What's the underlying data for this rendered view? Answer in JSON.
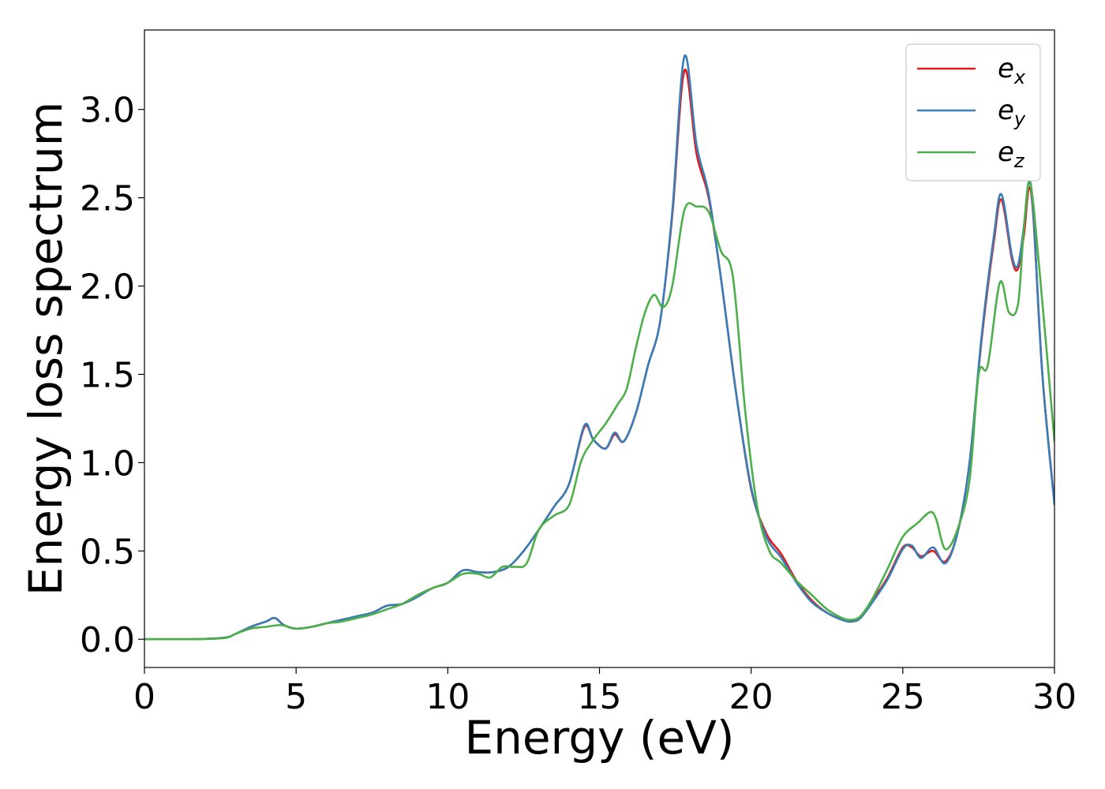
{
  "chart_data": {
    "type": "line",
    "xlabel": "Energy (eV)",
    "ylabel": "Energy loss spectrum",
    "xlim": [
      0,
      30
    ],
    "ylim": [
      -0.16,
      3.45
    ],
    "xticks": [
      "0",
      "5",
      "10",
      "15",
      "20",
      "25",
      "30"
    ],
    "yticks": [
      "0.0",
      "0.5",
      "1.0",
      "1.5",
      "2.0",
      "2.5",
      "3.0"
    ],
    "grid": false,
    "legend_position": "top-right",
    "series": [
      {
        "name": "e_x",
        "legend_base": "e",
        "legend_sub": "x",
        "color": "#e41a1c",
        "x": [
          0,
          1,
          2,
          2.7,
          3,
          3.5,
          4,
          4.3,
          4.6,
          5,
          5.5,
          6,
          6.5,
          7,
          7.5,
          8,
          8.5,
          9,
          9.5,
          10,
          10.5,
          11,
          11.5,
          12,
          12.5,
          13,
          13.5,
          14,
          14.5,
          14.8,
          15.2,
          15.5,
          15.8,
          16.2,
          16.6,
          17,
          17.4,
          17.8,
          18.2,
          18.6,
          19,
          19.5,
          20,
          20.5,
          21,
          21.5,
          22,
          22.5,
          23,
          23.3,
          23.6,
          24,
          24.5,
          25,
          25.3,
          25.6,
          26,
          26.4,
          26.8,
          27.2,
          27.6,
          28,
          28.25,
          28.6,
          28.8,
          29,
          29.15,
          29.3,
          29.6,
          30
        ],
        "values": [
          0,
          0,
          0.002,
          0.01,
          0.03,
          0.07,
          0.1,
          0.12,
          0.08,
          0.06,
          0.07,
          0.09,
          0.11,
          0.13,
          0.15,
          0.19,
          0.2,
          0.25,
          0.29,
          0.32,
          0.39,
          0.38,
          0.38,
          0.41,
          0.5,
          0.62,
          0.75,
          0.88,
          1.2,
          1.13,
          1.08,
          1.16,
          1.12,
          1.28,
          1.55,
          1.8,
          2.4,
          3.22,
          2.75,
          2.5,
          2.05,
          1.4,
          0.85,
          0.6,
          0.48,
          0.33,
          0.22,
          0.15,
          0.11,
          0.1,
          0.12,
          0.22,
          0.35,
          0.52,
          0.52,
          0.47,
          0.5,
          0.44,
          0.6,
          1.0,
          1.7,
          2.25,
          2.49,
          2.15,
          2.1,
          2.3,
          2.55,
          2.4,
          1.5,
          0.77
        ]
      },
      {
        "name": "e_y",
        "legend_base": "e",
        "legend_sub": "y",
        "color": "#377eb8",
        "x": [
          0,
          1,
          2,
          2.7,
          3,
          3.5,
          4,
          4.3,
          4.6,
          5,
          5.5,
          6,
          6.5,
          7,
          7.5,
          8,
          8.5,
          9,
          9.5,
          10,
          10.5,
          11,
          11.5,
          12,
          12.5,
          13,
          13.5,
          14,
          14.5,
          14.8,
          15.2,
          15.5,
          15.8,
          16.2,
          16.6,
          17,
          17.4,
          17.8,
          18.2,
          18.6,
          19,
          19.5,
          20,
          20.5,
          21,
          21.5,
          22,
          22.5,
          23,
          23.3,
          23.6,
          24,
          24.5,
          25,
          25.3,
          25.6,
          26,
          26.4,
          26.8,
          27.2,
          27.6,
          28,
          28.25,
          28.6,
          28.8,
          29,
          29.15,
          29.3,
          29.6,
          30
        ],
        "values": [
          0,
          0,
          0.002,
          0.01,
          0.03,
          0.07,
          0.1,
          0.12,
          0.08,
          0.06,
          0.07,
          0.09,
          0.11,
          0.13,
          0.15,
          0.19,
          0.2,
          0.24,
          0.29,
          0.32,
          0.39,
          0.38,
          0.38,
          0.41,
          0.5,
          0.62,
          0.75,
          0.88,
          1.21,
          1.13,
          1.08,
          1.17,
          1.12,
          1.28,
          1.55,
          1.8,
          2.42,
          3.3,
          2.8,
          2.52,
          2.05,
          1.4,
          0.86,
          0.58,
          0.46,
          0.32,
          0.21,
          0.15,
          0.11,
          0.1,
          0.12,
          0.21,
          0.34,
          0.51,
          0.53,
          0.46,
          0.52,
          0.43,
          0.6,
          1.0,
          1.72,
          2.28,
          2.52,
          2.17,
          2.12,
          2.35,
          2.59,
          2.42,
          1.5,
          0.76
        ]
      },
      {
        "name": "e_z",
        "legend_base": "e",
        "legend_sub": "z",
        "color": "#4daf4a",
        "x": [
          0,
          1,
          2,
          2.7,
          3,
          3.5,
          4,
          4.5,
          5,
          5.5,
          6,
          6.5,
          7,
          7.5,
          8,
          8.5,
          9,
          9.5,
          10,
          10.5,
          11,
          11.4,
          11.8,
          12.2,
          12.6,
          13,
          13.5,
          14,
          14.4,
          14.8,
          15.2,
          15.6,
          15.9,
          16.2,
          16.5,
          16.8,
          17.1,
          17.4,
          17.8,
          18.2,
          18.6,
          19,
          19.4,
          19.8,
          20.2,
          20.6,
          21,
          21.5,
          22,
          22.5,
          23,
          23.3,
          23.6,
          24,
          24.5,
          25,
          25.5,
          25.9,
          26.1,
          26.4,
          26.8,
          27.2,
          27.5,
          27.8,
          28.2,
          28.5,
          28.8,
          29,
          29.2,
          29.5,
          30
        ],
        "values": [
          0,
          0,
          0.001,
          0.008,
          0.03,
          0.06,
          0.07,
          0.08,
          0.06,
          0.07,
          0.09,
          0.1,
          0.12,
          0.14,
          0.17,
          0.2,
          0.25,
          0.29,
          0.32,
          0.37,
          0.37,
          0.35,
          0.41,
          0.41,
          0.43,
          0.62,
          0.7,
          0.76,
          1.01,
          1.13,
          1.22,
          1.33,
          1.42,
          1.65,
          1.85,
          1.95,
          1.88,
          2.0,
          2.43,
          2.45,
          2.42,
          2.2,
          2.05,
          1.3,
          0.75,
          0.5,
          0.43,
          0.33,
          0.25,
          0.17,
          0.12,
          0.11,
          0.13,
          0.23,
          0.4,
          0.58,
          0.66,
          0.72,
          0.68,
          0.51,
          0.62,
          0.9,
          1.5,
          1.55,
          2.02,
          1.85,
          1.9,
          2.35,
          2.58,
          2.1,
          1.12
        ]
      }
    ]
  }
}
